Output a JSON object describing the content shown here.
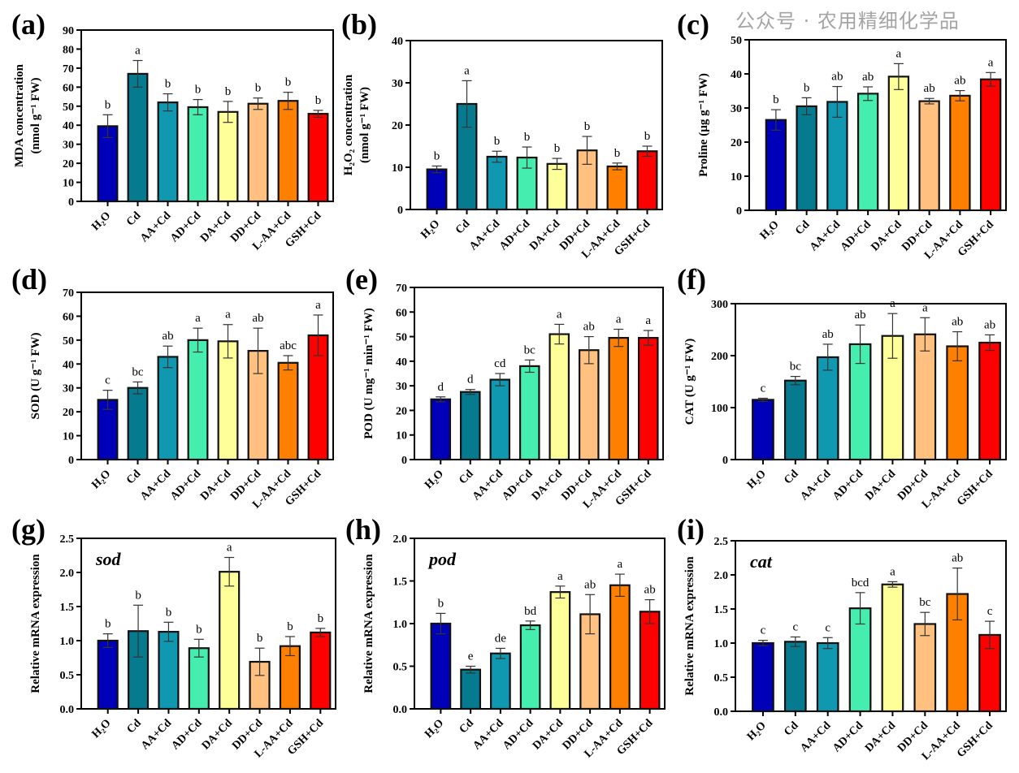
{
  "colors": [
    "#0000b8",
    "#067a8f",
    "#1098b0",
    "#45eeae",
    "#ffff99",
    "#ffc080",
    "#ff8000",
    "#ff0000"
  ],
  "watermark": "公众号 · 农用精细化学品",
  "chart_data": [
    {
      "panel": "(a)",
      "type": "bar",
      "categories": [
        "H₂O",
        "Cd",
        "AA+Cd",
        "AD+Cd",
        "DA+Cd",
        "DD+Cd",
        "L-AA+Cd",
        "GSH+Cd"
      ],
      "ylabel": [
        "MDA concentration",
        "(nmol g⁻¹ FW)"
      ],
      "ylim": [
        0,
        90
      ],
      "yticks": [
        0,
        10,
        20,
        30,
        40,
        50,
        60,
        70,
        80,
        90
      ],
      "values": [
        39.5,
        67,
        52,
        49.5,
        47,
        51.3,
        52.8,
        46
      ],
      "errors": [
        6,
        7,
        4.5,
        4,
        5.5,
        3,
        4.5,
        1.8
      ],
      "letters": [
        "b",
        "a",
        "b",
        "b",
        "b",
        "b",
        "b",
        "b"
      ]
    },
    {
      "panel": "(b)",
      "type": "bar",
      "categories": [
        "H₂O",
        "Cd",
        "AA+Cd",
        "AD+Cd",
        "DA+Cd",
        "DD+Cd",
        "L-AA+Cd",
        "GSH+Cd"
      ],
      "ylabel": [
        "H₂O₂ concentration",
        "(nmol g⁻¹ FW)"
      ],
      "ylim": [
        0,
        40
      ],
      "yticks": [
        0,
        10,
        20,
        30,
        40
      ],
      "values": [
        9.5,
        25,
        12.5,
        12.3,
        10.8,
        14,
        10.2,
        13.8
      ],
      "errors": [
        0.8,
        5.5,
        1.3,
        2.5,
        1.3,
        3.3,
        0.8,
        1.2
      ],
      "letters": [
        "b",
        "a",
        "b",
        "b",
        "b",
        "b",
        "b",
        "b"
      ]
    },
    {
      "panel": "(c)",
      "type": "bar",
      "categories": [
        "H₂O",
        "Cd",
        "AA+Cd",
        "AD+Cd",
        "DA+Cd",
        "DD+Cd",
        "L-AA+Cd",
        "GSH+Cd"
      ],
      "ylabel": [
        "Proline (µg g⁻¹ FW)"
      ],
      "ylim": [
        0,
        50
      ],
      "yticks": [
        0,
        10,
        20,
        30,
        40,
        50
      ],
      "values": [
        26.5,
        30.5,
        31.8,
        34.2,
        39.2,
        32,
        33.6,
        38.4
      ],
      "errors": [
        3,
        2.5,
        4.5,
        2,
        3.8,
        0.8,
        1.5,
        2
      ],
      "letters": [
        "b",
        "b",
        "ab",
        "ab",
        "a",
        "ab",
        "ab",
        "a"
      ]
    },
    {
      "panel": "(d)",
      "type": "bar",
      "categories": [
        "H₂O",
        "Cd",
        "AA+Cd",
        "AD+Cd",
        "DA+Cd",
        "DD+Cd",
        "L-AA+Cd",
        "GSH+Cd"
      ],
      "ylabel": [
        "SOD (U g⁻¹ FW)"
      ],
      "ylim": [
        0,
        70
      ],
      "yticks": [
        0,
        10,
        20,
        30,
        40,
        50,
        60,
        70
      ],
      "values": [
        25,
        30,
        43,
        50,
        49.5,
        45.5,
        40.5,
        52
      ],
      "errors": [
        4,
        2.5,
        4.5,
        5,
        7,
        9.5,
        3,
        8.5
      ],
      "letters": [
        "c",
        "bc",
        "ab",
        "a",
        "a",
        "ab",
        "abc",
        "a"
      ]
    },
    {
      "panel": "(e)",
      "type": "bar",
      "categories": [
        "H₂O",
        "Cd",
        "AA+Cd",
        "AD+Cd",
        "DA+Cd",
        "DD+Cd",
        "L-AA+Cd",
        "GSH+Cd"
      ],
      "ylabel": [
        "POD (U mg⁻¹ min⁻¹ FW)"
      ],
      "ylim": [
        0,
        70
      ],
      "yticks": [
        0,
        10,
        20,
        30,
        40,
        50,
        60,
        70
      ],
      "values": [
        24.5,
        27.5,
        32.5,
        38,
        51,
        44.5,
        49.5,
        49.5
      ],
      "errors": [
        1,
        1,
        2.5,
        2.5,
        4,
        5.5,
        3.5,
        3
      ],
      "letters": [
        "d",
        "d",
        "cd",
        "bc",
        "a",
        "ab",
        "a",
        "a"
      ]
    },
    {
      "panel": "(f)",
      "type": "bar",
      "categories": [
        "H₂O",
        "Cd",
        "AA+Cd",
        "AD+Cd",
        "DA+Cd",
        "DD+Cd",
        "L-AA+Cd",
        "GSH+Cd"
      ],
      "ylabel": [
        "CAT (U g⁻¹ FW)"
      ],
      "ylim": [
        0,
        300
      ],
      "yticks": [
        0,
        100,
        200,
        300
      ],
      "values": [
        115,
        152,
        197,
        222,
        238,
        241,
        218,
        225
      ],
      "errors": [
        3,
        8,
        25,
        37,
        43,
        32,
        28,
        15
      ],
      "letters": [
        "c",
        "bc",
        "ab",
        "ab",
        "a",
        "a",
        "ab",
        "ab"
      ]
    },
    {
      "panel": "(g)",
      "type": "bar",
      "gene": "sod",
      "categories": [
        "H₂O",
        "Cd",
        "AA+Cd",
        "AD+Cd",
        "DA+Cd",
        "DD+Cd",
        "L-AA+Cd",
        "GSH+Cd"
      ],
      "ylabel": [
        "Relative mRNA expression"
      ],
      "ylim": [
        0,
        2.5
      ],
      "yticks": [
        "0.0",
        "0.5",
        "1.0",
        "1.5",
        "2.0",
        "2.5"
      ],
      "values": [
        1.0,
        1.14,
        1.13,
        0.89,
        2.01,
        0.69,
        0.92,
        1.12
      ],
      "errors": [
        0.1,
        0.38,
        0.14,
        0.13,
        0.21,
        0.2,
        0.14,
        0.06
      ],
      "letters": [
        "b",
        "b",
        "b",
        "b",
        "a",
        "b",
        "b",
        "b"
      ]
    },
    {
      "panel": "(h)",
      "type": "bar",
      "gene": "pod",
      "categories": [
        "H₂O",
        "Cd",
        "AA+Cd",
        "AD+Cd",
        "DA+Cd",
        "DD+Cd",
        "L-AA+Cd",
        "GSH+Cd"
      ],
      "ylabel": [
        "Relative mRNA expression"
      ],
      "ylim": [
        0,
        2.0
      ],
      "yticks": [
        "0.0",
        "0.5",
        "1.0",
        "1.5",
        "2.0"
      ],
      "values": [
        1.0,
        0.46,
        0.65,
        0.98,
        1.37,
        1.11,
        1.45,
        1.14
      ],
      "errors": [
        0.12,
        0.04,
        0.06,
        0.05,
        0.07,
        0.23,
        0.13,
        0.14
      ],
      "letters": [
        "b",
        "e",
        "de",
        "bd",
        "a",
        "ab",
        "a",
        "ab"
      ]
    },
    {
      "panel": "(i)",
      "type": "bar",
      "gene": "cat",
      "categories": [
        "H₂O",
        "Cd",
        "AA+Cd",
        "AD+Cd",
        "DA+Cd",
        "DD+Cd",
        "L-AA+Cd",
        "GSH+Cd"
      ],
      "ylabel": [
        "Relative mRNA expression"
      ],
      "ylim": [
        0,
        2.5
      ],
      "yticks": [
        "0.0",
        "0.5",
        "1.0",
        "1.5",
        "2.0",
        "2.5"
      ],
      "values": [
        1.0,
        1.02,
        1.0,
        1.51,
        1.86,
        1.28,
        1.72,
        1.12
      ],
      "errors": [
        0.04,
        0.07,
        0.08,
        0.23,
        0.04,
        0.17,
        0.38,
        0.2
      ],
      "letters": [
        "c",
        "c",
        "c",
        "bcd",
        "a",
        "bc",
        "ab",
        "c"
      ]
    }
  ]
}
